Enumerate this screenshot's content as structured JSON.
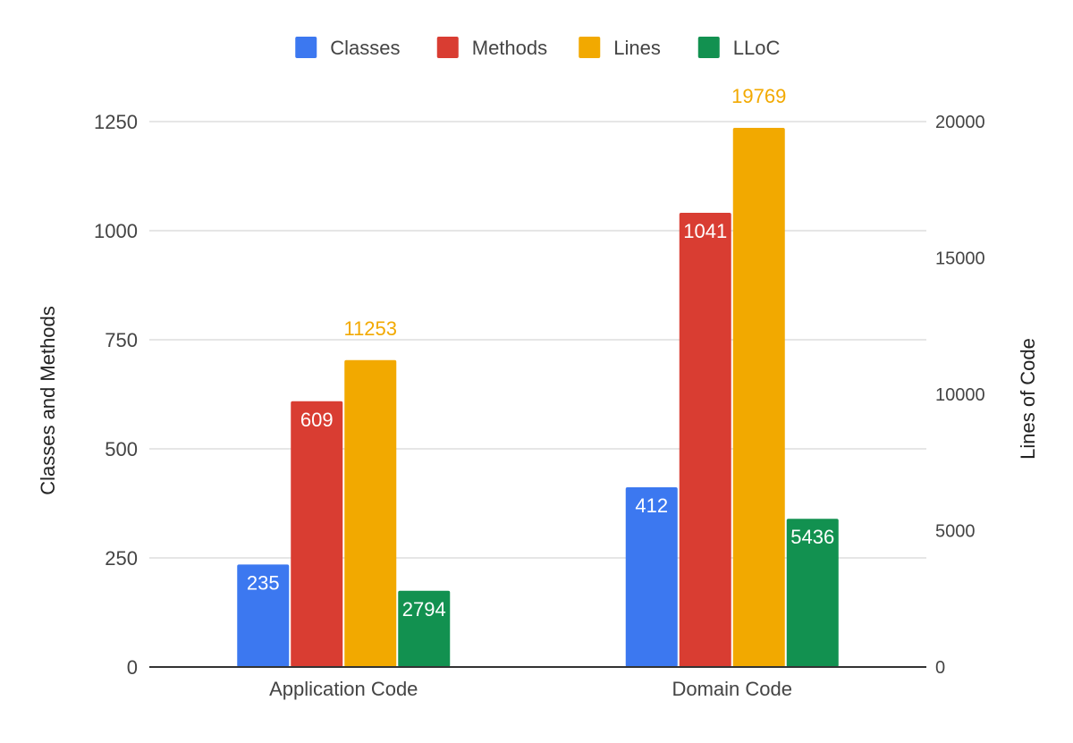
{
  "chart_data": {
    "type": "bar",
    "categories": [
      "Application Code",
      "Domain Code"
    ],
    "series": [
      {
        "name": "Classes",
        "values": [
          235,
          412
        ],
        "axis": "left",
        "color": "#3c78f0",
        "label_placement": "inside"
      },
      {
        "name": "Methods",
        "values": [
          609,
          1041
        ],
        "axis": "left",
        "color": "#d93d32",
        "label_placement": "inside"
      },
      {
        "name": "Lines",
        "values": [
          11253,
          19769
        ],
        "axis": "right",
        "color": "#f2a900",
        "label_placement": "above"
      },
      {
        "name": "LLoC",
        "values": [
          2794,
          5436
        ],
        "axis": "right",
        "color": "#129150",
        "label_placement": "inside"
      }
    ],
    "y_left": {
      "label": "Classes and Methods",
      "ylim": [
        0,
        1250
      ],
      "ticks": [
        0,
        250,
        500,
        750,
        1000,
        1250
      ]
    },
    "y_right": {
      "label": "Lines of Code",
      "ylim": [
        0,
        20000
      ],
      "ticks": [
        0,
        5000,
        10000,
        15000,
        20000
      ]
    },
    "xlabel": "",
    "grid": true,
    "legend_position": "top-center"
  }
}
